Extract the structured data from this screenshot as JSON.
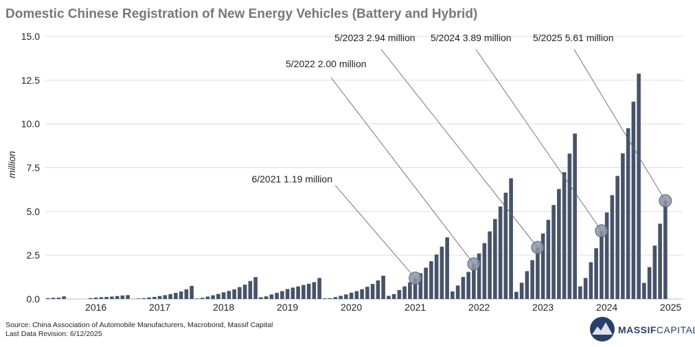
{
  "chart_data": {
    "type": "bar",
    "title": "Domestic Chinese Registration of New Energy Vehicles (Battery and Hybrid)",
    "y_label": "million",
    "color": "#46536a",
    "grid": true,
    "ylim": [
      0,
      15
    ],
    "yticks": [
      {
        "value": 0,
        "label": "0.0"
      },
      2.5,
      {
        "value": 5,
        "label": "5.0"
      },
      7.5,
      {
        "value": 10,
        "label": "10.0"
      },
      12.5,
      {
        "value": 15,
        "label": "15.0"
      }
    ],
    "categories": [
      null,
      null,
      null,
      null,
      null,
      null,
      null,
      null,
      null,
      "2016",
      null,
      null,
      null,
      null,
      null,
      null,
      null,
      null,
      null,
      null,
      null,
      "2017",
      null,
      null,
      null,
      null,
      null,
      null,
      null,
      null,
      null,
      null,
      null,
      "2018",
      null,
      null,
      null,
      null,
      null,
      null,
      null,
      null,
      null,
      null,
      null,
      "2019",
      null,
      null,
      null,
      null,
      null,
      null,
      null,
      null,
      null,
      null,
      null,
      "2020",
      null,
      null,
      null,
      null,
      null,
      null,
      null,
      null,
      null,
      null,
      null,
      "2021",
      null,
      null,
      null,
      null,
      null,
      null,
      null,
      null,
      null,
      null,
      null,
      "2022",
      null,
      null,
      null,
      null,
      null,
      null,
      null,
      null,
      null,
      null,
      null,
      "2023",
      null,
      null,
      null,
      null,
      null,
      null,
      null,
      null,
      null,
      null,
      null,
      "2024",
      null,
      null,
      null,
      null,
      null,
      null,
      null,
      null,
      null,
      null,
      null,
      "2025"
    ],
    "values": [
      0.05,
      0.07,
      0.08,
      0.15,
      null,
      null,
      null,
      null,
      0.05,
      0.08,
      0.1,
      0.12,
      0.14,
      0.17,
      0.2,
      0.22,
      0.01,
      0.03,
      0.05,
      0.09,
      0.12,
      0.17,
      0.22,
      0.28,
      0.35,
      0.43,
      0.55,
      0.75,
      0.03,
      0.07,
      0.14,
      0.21,
      0.29,
      0.38,
      0.46,
      0.55,
      0.68,
      0.82,
      1.03,
      1.25,
      0.1,
      0.15,
      0.26,
      0.35,
      0.45,
      0.57,
      0.65,
      0.72,
      0.8,
      0.87,
      0.96,
      1.2,
      0.04,
      0.05,
      0.11,
      0.18,
      0.26,
      0.36,
      0.45,
      0.56,
      0.7,
      0.86,
      1.06,
      1.33,
      0.18,
      0.28,
      0.51,
      0.72,
      0.95,
      1.19,
      1.47,
      1.79,
      2.16,
      2.54,
      2.99,
      3.52,
      0.43,
      0.77,
      1.26,
      1.55,
      2.0,
      2.6,
      3.19,
      3.86,
      4.57,
      5.28,
      6.07,
      6.89,
      0.41,
      0.93,
      1.59,
      2.22,
      2.94,
      3.74,
      4.52,
      5.37,
      6.28,
      7.24,
      8.3,
      9.45,
      0.72,
      1.2,
      2.1,
      2.9,
      3.89,
      4.94,
      5.93,
      7.03,
      8.32,
      9.75,
      11.27,
      12.87,
      0.92,
      1.82,
      3.05,
      4.3,
      5.61,
      null
    ],
    "annotations": [
      {
        "text": "6/2021 1.19 million",
        "value": 1.19
      },
      {
        "text": "5/2022 2.00 million",
        "value": 2.0
      },
      {
        "text": "5/2023 2.94 million",
        "value": 2.94
      },
      {
        "text": "5/2024 3.89 million",
        "value": 3.89
      },
      {
        "text": "5/2025 5.61 million",
        "value": 5.61
      }
    ]
  },
  "footer": {
    "source": "Source: China Association of Automobile Manufacturers, Macrobond, Massif Capital",
    "revision": "Last Data Revision: 6/12/2025",
    "logo_bold": "MASSIF",
    "logo_light": "CAPITAL"
  }
}
